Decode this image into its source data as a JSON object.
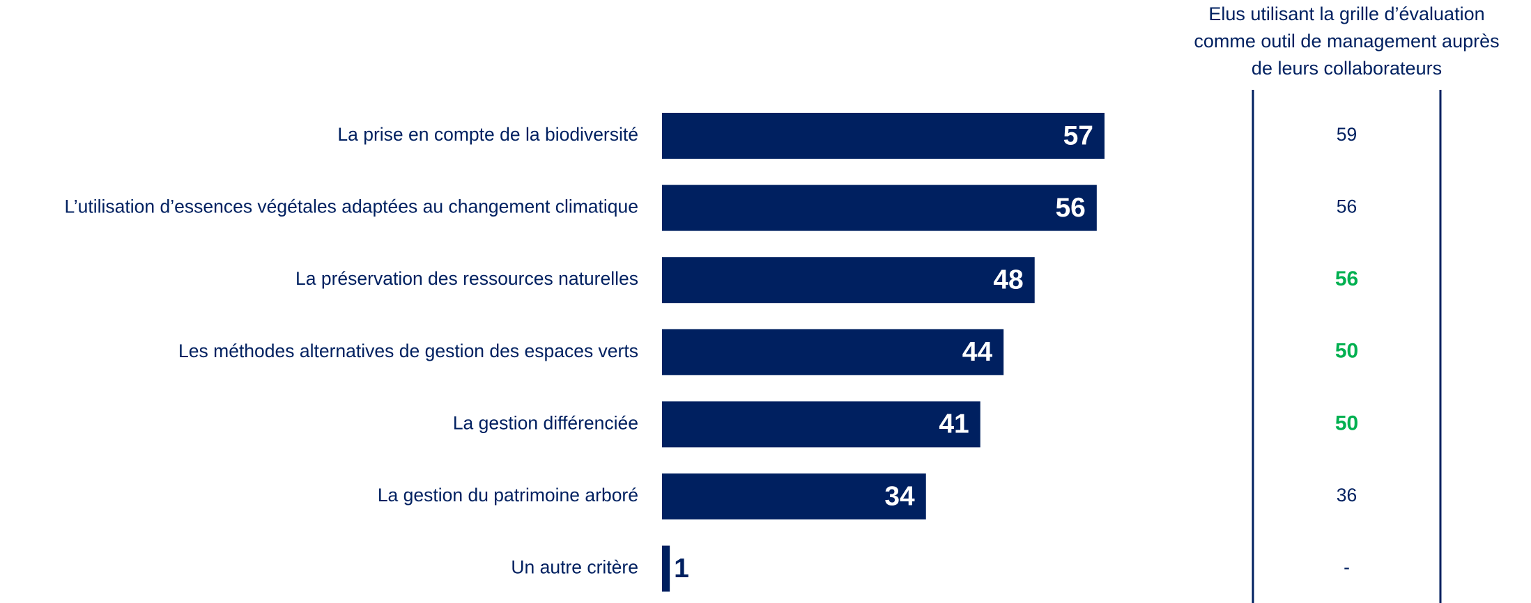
{
  "chart_data": {
    "type": "bar",
    "orientation": "horizontal",
    "categories": [
      "La prise en compte de la biodiversité",
      "L’utilisation d’essences végétales adaptées au changement climatique",
      "La préservation des ressources naturelles",
      "Les méthodes alternatives de gestion des espaces verts",
      "La gestion différenciée",
      "La gestion du patrimoine arboré",
      "Un autre critère"
    ],
    "values": [
      57,
      56,
      48,
      44,
      41,
      34,
      1
    ],
    "color": "#002060",
    "label_color": "#ffffff",
    "side_column": {
      "title": [
        "Elus utilisant la grille d’évaluation",
        "comme outil de management auprès",
        "de leurs collaborateurs"
      ],
      "values": [
        59,
        56,
        56,
        50,
        50,
        36,
        "-"
      ],
      "highlight": [
        false,
        false,
        true,
        true,
        true,
        false,
        false
      ],
      "color": "#002060",
      "highlight_color": "#00b050"
    }
  }
}
